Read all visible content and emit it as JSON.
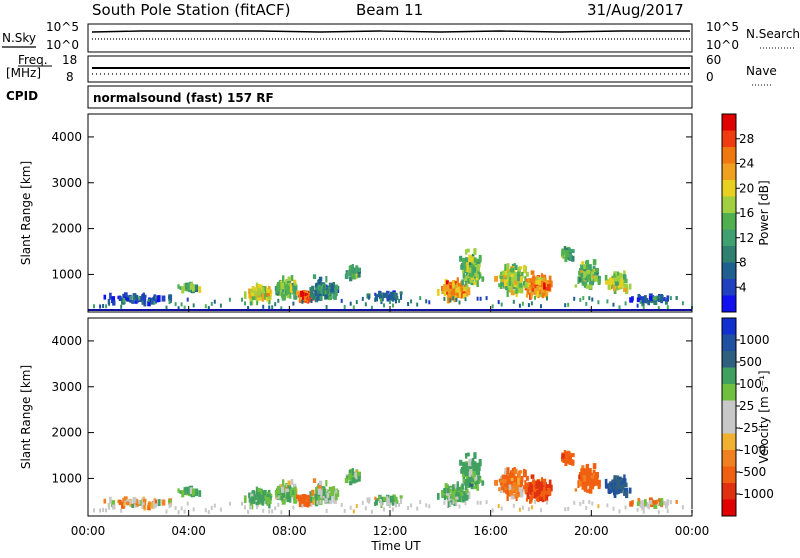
{
  "header": {
    "station": "South Pole Station (fitACF)",
    "beam": "Beam 11",
    "date": "31/Aug/2017"
  },
  "panels": {
    "nsky_label": "N.Sky",
    "nsky_top": "10^5",
    "nsky_bottom": "10^0",
    "nsearch_label": "N.Search",
    "nsearch_top": "10^5",
    "nsearch_bottom": "10^0",
    "freq_label_1": "Freq.",
    "freq_label_2": "[MHz]",
    "freq_top": "18",
    "freq_bottom": "8",
    "nave_label": "Nave",
    "nave_top": "60",
    "nave_bottom": "0",
    "cpid_label": "CPID",
    "cpid_text": "normalsound (fast) 157 RF"
  },
  "power_colorbar": {
    "label": "Power [dB]",
    "ticks": [
      "28",
      "24",
      "20",
      "16",
      "12",
      "8",
      "4"
    ],
    "colors": [
      "#e00000",
      "#f03a10",
      "#f07810",
      "#f0a020",
      "#e8d020",
      "#a0d040",
      "#50b050",
      "#40a070",
      "#308070",
      "#206090",
      "#2040c0",
      "#1010f0"
    ]
  },
  "velocity_colorbar": {
    "label": "Velocity [m s⁻¹]",
    "ticks": [
      "1000",
      "500",
      "100",
      "25",
      "-25",
      "-100",
      "-500",
      "-1000"
    ],
    "colors": [
      "#1030d0",
      "#2050a0",
      "#306080",
      "#40a060",
      "#70c040",
      "#c8c8c8",
      "#c8c8c8",
      "#f0b030",
      "#f08020",
      "#f06010",
      "#e03010",
      "#e00000"
    ]
  },
  "axes": {
    "ylabel": "Slant Range [km]",
    "xlabel": "Time UT",
    "yticks": [
      "1000",
      "2000",
      "3000",
      "4000"
    ],
    "xticks": [
      "00:00",
      "04:00",
      "08:00",
      "12:00",
      "16:00",
      "20:00",
      "00:00"
    ]
  },
  "chart_data": {
    "type": "heatmap",
    "x_range_hours": [
      0,
      24
    ],
    "y_range_km": [
      180,
      4500
    ],
    "ylim_km": [
      180,
      4500
    ],
    "grid": false,
    "blobs": [
      {
        "t": 2.0,
        "r": 450,
        "dt": 1.8,
        "dr": 120,
        "n": 50,
        "p": 4,
        "v": -30
      },
      {
        "t": 4.0,
        "r": 720,
        "dt": 0.5,
        "dr": 90,
        "n": 30,
        "p": 12,
        "v": 150
      },
      {
        "t": 6.8,
        "r": 580,
        "dt": 0.7,
        "dr": 220,
        "n": 120,
        "p": 18,
        "v": 120
      },
      {
        "t": 7.8,
        "r": 700,
        "dt": 0.6,
        "dr": 250,
        "n": 120,
        "p": 14,
        "v": 80
      },
      {
        "t": 8.6,
        "r": 520,
        "dt": 0.4,
        "dr": 120,
        "n": 80,
        "p": 26,
        "v": -200
      },
      {
        "t": 9.3,
        "r": 680,
        "dt": 0.7,
        "dr": 300,
        "n": 80,
        "p": 10,
        "v": 60
      },
      {
        "t": 10.5,
        "r": 1050,
        "dt": 0.4,
        "dr": 180,
        "n": 40,
        "p": 12,
        "v": 120
      },
      {
        "t": 11.8,
        "r": 520,
        "dt": 0.8,
        "dr": 120,
        "n": 40,
        "p": 6,
        "v": 40
      },
      {
        "t": 14.5,
        "r": 650,
        "dt": 0.7,
        "dr": 280,
        "n": 160,
        "p": 22,
        "v": 100
      },
      {
        "t": 15.2,
        "r": 1100,
        "dt": 0.6,
        "dr": 500,
        "n": 120,
        "p": 14,
        "v": 150
      },
      {
        "t": 16.8,
        "r": 900,
        "dt": 0.7,
        "dr": 400,
        "n": 140,
        "p": 16,
        "v": -120
      },
      {
        "t": 17.8,
        "r": 750,
        "dt": 0.7,
        "dr": 300,
        "n": 140,
        "p": 22,
        "v": -300
      },
      {
        "t": 19.0,
        "r": 1450,
        "dt": 0.4,
        "dr": 180,
        "n": 40,
        "p": 12,
        "v": -200
      },
      {
        "t": 19.8,
        "r": 1000,
        "dt": 0.6,
        "dr": 350,
        "n": 100,
        "p": 14,
        "v": -150
      },
      {
        "t": 21.0,
        "r": 800,
        "dt": 0.7,
        "dr": 250,
        "n": 80,
        "p": 16,
        "v": 500
      },
      {
        "t": 22.5,
        "r": 450,
        "dt": 1.2,
        "dr": 100,
        "n": 40,
        "p": 6,
        "v": -30
      }
    ]
  }
}
